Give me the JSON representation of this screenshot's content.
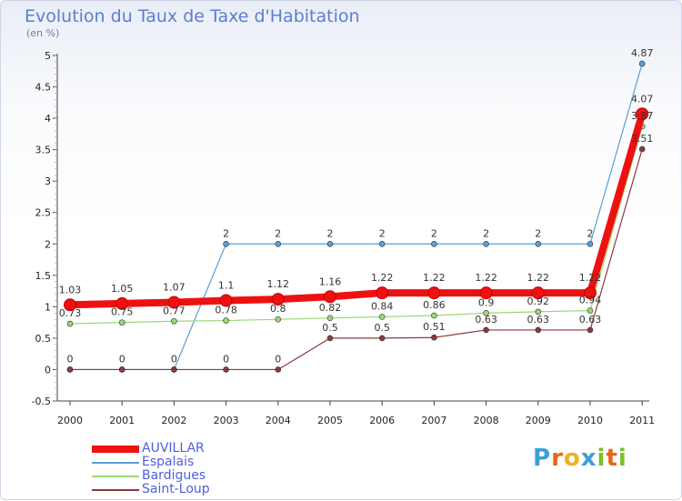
{
  "header": {
    "title": "Evolution du Taux de Taxe d'Habitation",
    "unit": "(en %)"
  },
  "brand": {
    "letters": [
      "P",
      "r",
      "o",
      "x",
      "i",
      "t",
      "i"
    ],
    "colors": [
      "#3aa0d8",
      "#e8641a",
      "#f0b020",
      "#3aa0d8",
      "#7cbf2a",
      "#e8641a",
      "#7cbf2a"
    ]
  },
  "chart_data": {
    "type": "line",
    "title": "Evolution du Taux de Taxe d'Habitation",
    "ylabel": "(en %)",
    "xlabel": "",
    "ylim": [
      -0.5,
      5
    ],
    "yticks": [
      -0.5,
      0,
      0.5,
      1,
      1.5,
      2,
      2.5,
      3,
      3.5,
      4,
      4.5,
      5
    ],
    "ytick_labels": [
      "-0.5",
      "0",
      "0.5",
      "1",
      "1.5",
      "2",
      "2.5",
      "3",
      "3.5",
      "4",
      "4.5",
      "5"
    ],
    "categories": [
      "2000",
      "2001",
      "2002",
      "2003",
      "2004",
      "2005",
      "2006",
      "2007",
      "2008",
      "2009",
      "2010",
      "2011"
    ],
    "grid": false,
    "legend": "bottom-left",
    "series": [
      {
        "name": "Espalais",
        "color": "#5a9fd6",
        "width": 1.2,
        "values": [
          0,
          0,
          0,
          2,
          2,
          2,
          2,
          2,
          2,
          2,
          2,
          4.87
        ],
        "labels": [
          "",
          "",
          "",
          "2",
          "2",
          "2",
          "2",
          "2",
          "2",
          "2",
          "2",
          "4.87"
        ]
      },
      {
        "name": "Bardigues",
        "color": "#98d878",
        "width": 1.2,
        "values": [
          0.73,
          0.75,
          0.77,
          0.78,
          0.8,
          0.82,
          0.84,
          0.86,
          0.9,
          0.92,
          0.94,
          3.87
        ],
        "labels": [
          "0.73",
          "0.75",
          "0.77",
          "0.78",
          "0.8",
          "0.82",
          "0.84",
          "0.86",
          "0.9",
          "0.92",
          "0.94",
          "3.87"
        ]
      },
      {
        "name": "Saint-Loup",
        "color": "#8b3a3a",
        "width": 1.2,
        "values": [
          0,
          0,
          0,
          0,
          0,
          0.5,
          0.5,
          0.51,
          0.63,
          0.63,
          0.63,
          3.51
        ],
        "labels": [
          "0",
          "0",
          "0",
          "0",
          "0",
          "0.5",
          "0.5",
          "0.51",
          "0.63",
          "0.63",
          "0.63",
          "3.51"
        ]
      },
      {
        "name": "AUVILLAR",
        "color": "#ee1111",
        "width": 8,
        "values": [
          1.03,
          1.05,
          1.07,
          1.1,
          1.12,
          1.16,
          1.22,
          1.22,
          1.22,
          1.22,
          1.22,
          4.07
        ],
        "labels": [
          "1.03",
          "1.05",
          "1.07",
          "1.1",
          "1.12",
          "1.16",
          "1.22",
          "1.22",
          "1.22",
          "1.22",
          "1.22",
          "4.07"
        ]
      }
    ],
    "legend_order": [
      "AUVILLAR",
      "Espalais",
      "Bardigues",
      "Saint-Loup"
    ]
  }
}
